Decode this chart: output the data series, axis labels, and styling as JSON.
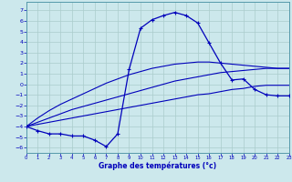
{
  "xlabel": "Graphe des températures (°c)",
  "bg_color": "#cce8ec",
  "grid_color": "#aacccc",
  "line_color": "#0000bb",
  "hours": [
    0,
    1,
    2,
    3,
    4,
    5,
    6,
    7,
    8,
    9,
    10,
    11,
    12,
    13,
    14,
    15,
    16,
    17,
    18,
    19,
    20,
    21,
    22,
    23
  ],
  "curve_main": [
    -4.0,
    -4.4,
    -4.7,
    -4.7,
    -4.9,
    -4.9,
    -5.3,
    -5.9,
    -4.7,
    1.4,
    5.3,
    6.1,
    6.5,
    6.8,
    6.5,
    5.8,
    3.9,
    2.0,
    0.4,
    0.5,
    -0.5,
    -1.0,
    -1.1,
    -1.1
  ],
  "curve_line1": [
    -4.0,
    -3.8,
    -3.6,
    -3.4,
    -3.2,
    -3.0,
    -2.8,
    -2.6,
    -2.4,
    -2.2,
    -2.0,
    -1.8,
    -1.6,
    -1.4,
    -1.2,
    -1.0,
    -0.9,
    -0.7,
    -0.5,
    -0.4,
    -0.2,
    -0.1,
    -0.1,
    -0.1
  ],
  "curve_line2": [
    -4.0,
    -3.6,
    -3.2,
    -2.8,
    -2.4,
    -2.1,
    -1.8,
    -1.5,
    -1.2,
    -0.9,
    -0.6,
    -0.3,
    0.0,
    0.3,
    0.5,
    0.7,
    0.9,
    1.1,
    1.2,
    1.3,
    1.4,
    1.5,
    1.5,
    1.5
  ],
  "curve_line3": [
    -4.0,
    -3.2,
    -2.5,
    -1.9,
    -1.4,
    -0.9,
    -0.4,
    0.1,
    0.5,
    0.9,
    1.2,
    1.5,
    1.7,
    1.9,
    2.0,
    2.1,
    2.1,
    2.0,
    1.9,
    1.8,
    1.7,
    1.6,
    1.5,
    1.5
  ],
  "ylim": [
    -6.5,
    7.8
  ],
  "xlim": [
    0,
    23
  ],
  "yticks": [
    -6,
    -5,
    -4,
    -3,
    -2,
    -1,
    0,
    1,
    2,
    3,
    4,
    5,
    6,
    7
  ],
  "xticks": [
    0,
    1,
    2,
    3,
    4,
    5,
    6,
    7,
    8,
    9,
    10,
    11,
    12,
    13,
    14,
    15,
    16,
    17,
    18,
    19,
    20,
    21,
    22,
    23
  ]
}
